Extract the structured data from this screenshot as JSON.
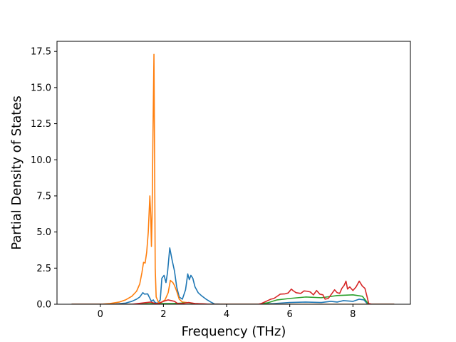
{
  "chart_data": {
    "type": "line",
    "title": "",
    "xlabel": "Frequency (THz)",
    "ylabel": "Partial Density of States",
    "xlim": [
      -1.37,
      9.82
    ],
    "ylim": [
      0,
      18.2
    ],
    "xticks": [
      0,
      2,
      4,
      6,
      8
    ],
    "xtick_labels": [
      "0",
      "2",
      "4",
      "6",
      "8"
    ],
    "yticks": [
      0.0,
      2.5,
      5.0,
      7.5,
      10.0,
      12.5,
      15.0,
      17.5
    ],
    "ytick_labels": [
      "0.0",
      "2.5",
      "5.0",
      "7.5",
      "10.0",
      "12.5",
      "15.0",
      "17.5"
    ],
    "grid": false,
    "legend": "none",
    "series": [
      {
        "color": "#1f77b4",
        "points": [
          [
            -0.9,
            0
          ],
          [
            0,
            0
          ],
          [
            0.5,
            0.02
          ],
          [
            0.8,
            0.08
          ],
          [
            1.0,
            0.2
          ],
          [
            1.15,
            0.35
          ],
          [
            1.25,
            0.5
          ],
          [
            1.3,
            0.65
          ],
          [
            1.35,
            0.8
          ],
          [
            1.4,
            0.7
          ],
          [
            1.5,
            0.72
          ],
          [
            1.55,
            0.5
          ],
          [
            1.62,
            0.2
          ],
          [
            1.68,
            0.3
          ],
          [
            1.72,
            0.15
          ],
          [
            1.8,
            0.05
          ],
          [
            1.9,
            0.3
          ],
          [
            1.95,
            1.8
          ],
          [
            2.02,
            2.0
          ],
          [
            2.08,
            1.5
          ],
          [
            2.13,
            2.2
          ],
          [
            2.2,
            3.9
          ],
          [
            2.28,
            3.0
          ],
          [
            2.35,
            2.3
          ],
          [
            2.42,
            1.2
          ],
          [
            2.5,
            0.5
          ],
          [
            2.6,
            0.35
          ],
          [
            2.7,
            1.0
          ],
          [
            2.77,
            2.1
          ],
          [
            2.82,
            1.7
          ],
          [
            2.87,
            2.0
          ],
          [
            2.93,
            1.8
          ],
          [
            3.0,
            1.2
          ],
          [
            3.1,
            0.8
          ],
          [
            3.2,
            0.6
          ],
          [
            3.35,
            0.35
          ],
          [
            3.5,
            0.15
          ],
          [
            3.62,
            0.02
          ],
          [
            4.0,
            0
          ],
          [
            5.0,
            0
          ],
          [
            5.5,
            0.05
          ],
          [
            6.0,
            0.12
          ],
          [
            6.5,
            0.15
          ],
          [
            7.0,
            0.12
          ],
          [
            7.3,
            0.2
          ],
          [
            7.5,
            0.15
          ],
          [
            7.7,
            0.25
          ],
          [
            8.0,
            0.2
          ],
          [
            8.2,
            0.35
          ],
          [
            8.35,
            0.3
          ],
          [
            8.45,
            0.05
          ],
          [
            8.5,
            0
          ],
          [
            9.3,
            0
          ]
        ]
      },
      {
        "color": "#ff7f0e",
        "points": [
          [
            -0.9,
            0
          ],
          [
            0,
            0
          ],
          [
            0.3,
            0.05
          ],
          [
            0.6,
            0.15
          ],
          [
            0.8,
            0.3
          ],
          [
            1.0,
            0.55
          ],
          [
            1.15,
            0.9
          ],
          [
            1.25,
            1.4
          ],
          [
            1.32,
            2.2
          ],
          [
            1.37,
            2.9
          ],
          [
            1.42,
            2.85
          ],
          [
            1.47,
            3.6
          ],
          [
            1.52,
            5.0
          ],
          [
            1.57,
            7.5
          ],
          [
            1.6,
            6.0
          ],
          [
            1.62,
            4.0
          ],
          [
            1.64,
            6.0
          ],
          [
            1.67,
            12.0
          ],
          [
            1.7,
            17.3
          ],
          [
            1.72,
            10.0
          ],
          [
            1.74,
            2.5
          ],
          [
            1.77,
            0.5
          ],
          [
            1.85,
            0.1
          ],
          [
            1.95,
            0.15
          ],
          [
            2.05,
            0.3
          ],
          [
            2.15,
            0.8
          ],
          [
            2.22,
            1.65
          ],
          [
            2.3,
            1.5
          ],
          [
            2.35,
            1.3
          ],
          [
            2.42,
            0.9
          ],
          [
            2.5,
            0.35
          ],
          [
            2.6,
            0.15
          ],
          [
            2.8,
            0.1
          ],
          [
            3.0,
            0.05
          ],
          [
            3.5,
            0
          ],
          [
            9.3,
            0
          ]
        ]
      },
      {
        "color": "#2ca02c",
        "points": [
          [
            -0.9,
            0
          ],
          [
            1.2,
            0
          ],
          [
            1.6,
            0.05
          ],
          [
            1.9,
            0.05
          ],
          [
            2.3,
            0.05
          ],
          [
            2.8,
            0.1
          ],
          [
            3.0,
            0.02
          ],
          [
            3.5,
            0
          ],
          [
            5.0,
            0
          ],
          [
            5.3,
            0.1
          ],
          [
            5.6,
            0.3
          ],
          [
            6.0,
            0.4
          ],
          [
            6.5,
            0.5
          ],
          [
            7.0,
            0.45
          ],
          [
            7.5,
            0.6
          ],
          [
            8.0,
            0.65
          ],
          [
            8.3,
            0.55
          ],
          [
            8.5,
            0
          ],
          [
            9.3,
            0
          ]
        ]
      },
      {
        "color": "#d62728",
        "points": [
          [
            -0.9,
            0
          ],
          [
            1.0,
            0
          ],
          [
            1.4,
            0.1
          ],
          [
            1.6,
            0.15
          ],
          [
            1.75,
            0.05
          ],
          [
            1.85,
            0.05
          ],
          [
            2.0,
            0.2
          ],
          [
            2.15,
            0.3
          ],
          [
            2.25,
            0.25
          ],
          [
            2.35,
            0.2
          ],
          [
            2.45,
            0.05
          ],
          [
            2.6,
            0.05
          ],
          [
            2.8,
            0.12
          ],
          [
            3.0,
            0.05
          ],
          [
            3.3,
            0.02
          ],
          [
            3.5,
            0
          ],
          [
            5.0,
            0
          ],
          [
            5.1,
            0.05
          ],
          [
            5.2,
            0.15
          ],
          [
            5.3,
            0.25
          ],
          [
            5.4,
            0.35
          ],
          [
            5.5,
            0.4
          ],
          [
            5.6,
            0.55
          ],
          [
            5.7,
            0.7
          ],
          [
            5.85,
            0.72
          ],
          [
            5.95,
            0.78
          ],
          [
            6.05,
            1.05
          ],
          [
            6.1,
            0.95
          ],
          [
            6.2,
            0.8
          ],
          [
            6.35,
            0.75
          ],
          [
            6.45,
            0.92
          ],
          [
            6.55,
            0.9
          ],
          [
            6.65,
            0.85
          ],
          [
            6.75,
            0.65
          ],
          [
            6.85,
            0.95
          ],
          [
            6.95,
            0.7
          ],
          [
            7.05,
            0.65
          ],
          [
            7.12,
            0.35
          ],
          [
            7.22,
            0.4
          ],
          [
            7.32,
            0.7
          ],
          [
            7.42,
            1.0
          ],
          [
            7.5,
            0.8
          ],
          [
            7.58,
            0.75
          ],
          [
            7.65,
            1.1
          ],
          [
            7.72,
            1.3
          ],
          [
            7.78,
            1.6
          ],
          [
            7.83,
            1.05
          ],
          [
            7.9,
            1.2
          ],
          [
            8.0,
            0.95
          ],
          [
            8.1,
            1.2
          ],
          [
            8.2,
            1.6
          ],
          [
            8.3,
            1.25
          ],
          [
            8.38,
            1.1
          ],
          [
            8.45,
            0.5
          ],
          [
            8.5,
            0.05
          ],
          [
            8.6,
            0
          ],
          [
            9.3,
            0
          ]
        ]
      }
    ]
  }
}
